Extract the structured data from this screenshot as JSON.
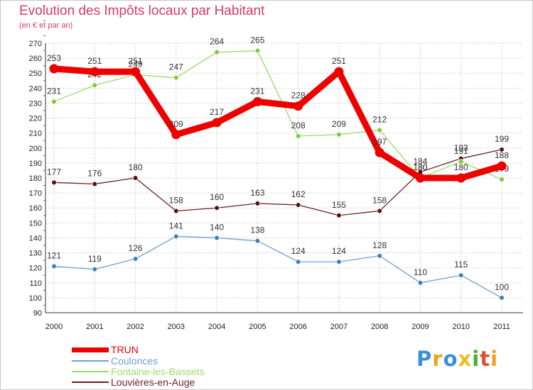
{
  "chart_data": {
    "type": "line",
    "title": "Evolution des Impôts locaux par Habitant",
    "subtitle": "(en € et par an)",
    "xlabel": "",
    "ylabel": "",
    "ylim": [
      90,
      270
    ],
    "y_ticks": [
      90,
      100,
      110,
      120,
      130,
      140,
      150,
      160,
      170,
      180,
      190,
      200,
      210,
      220,
      230,
      240,
      250,
      260,
      270
    ],
    "grid": true,
    "categories": [
      "2000",
      "2001",
      "2002",
      "2003",
      "2004",
      "2005",
      "2006",
      "2007",
      "2008",
      "2009",
      "2010",
      "2011"
    ],
    "series": [
      {
        "name": "Louvières-en-Auge",
        "color": "#6e1f1f",
        "marker": "#5a1010",
        "weight": "thin",
        "values": [
          177,
          176,
          180,
          158,
          160,
          163,
          162,
          155,
          158,
          184,
          193,
          199
        ]
      },
      {
        "name": "Coulonces",
        "color": "#6fa0d2",
        "marker": "#3f7fc0",
        "weight": "thin",
        "values": [
          121,
          119,
          126,
          141,
          140,
          138,
          124,
          124,
          128,
          110,
          115,
          100
        ]
      },
      {
        "name": "Fontaine-les-Bassets",
        "color": "#99dd66",
        "marker": "#7ccc3a",
        "weight": "thin",
        "values": [
          231,
          242,
          249,
          247,
          264,
          265,
          208,
          209,
          212,
          180,
          191,
          179
        ]
      },
      {
        "name": "TRUN",
        "color": "#ee0000",
        "marker": "#ee0000",
        "weight": "thick",
        "values": [
          253,
          251,
          251,
          209,
          217,
          231,
          228,
          251,
          197,
          180,
          180,
          188
        ]
      }
    ],
    "legend": [
      {
        "name": "TRUN",
        "color": "#ee0000",
        "weight": "thick"
      },
      {
        "name": "Coulonces",
        "color": "#6fa0d2",
        "weight": "thin"
      },
      {
        "name": "Fontaine-les-Bassets",
        "color": "#99dd66",
        "weight": "thin"
      },
      {
        "name": "Louvières-en-Auge",
        "color": "#6e1f1f",
        "weight": "thin"
      }
    ],
    "legend_position": "bottom-left"
  },
  "logo": {
    "letters": [
      {
        "ch": "P",
        "color": "#3b8fd8"
      },
      {
        "ch": "r",
        "color": "#f0a020"
      },
      {
        "ch": "o",
        "color": "#3b8fd8"
      },
      {
        "ch": "x",
        "color": "#e8c020"
      },
      {
        "ch": "i",
        "color": "#44b030"
      },
      {
        "ch": "t",
        "color": "#e05030"
      },
      {
        "ch": "i",
        "color": "#f0a020"
      }
    ]
  }
}
